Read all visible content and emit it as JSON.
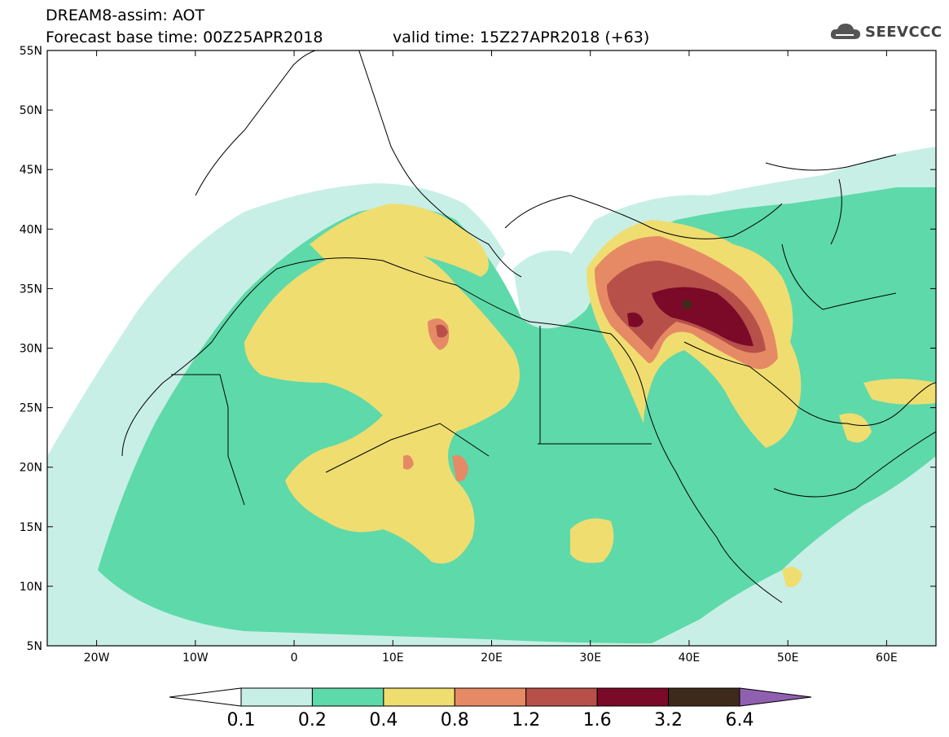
{
  "header": {
    "title_line1": "DREAM8-assim: AOT",
    "title_line2": "Forecast base time: 00Z25APR2018",
    "valid_time": "valid time: 15Z27APR2018 (+63)",
    "brand": "SEEVCCC"
  },
  "map": {
    "lat_labels": [
      "55N",
      "50N",
      "45N",
      "40N",
      "35N",
      "30N",
      "25N",
      "20N",
      "15N",
      "10N",
      "5N"
    ],
    "lon_labels": [
      "20W",
      "10W",
      "0",
      "10E",
      "20E",
      "30E",
      "40E",
      "50E",
      "60E"
    ],
    "lon_range": [
      -25,
      65
    ],
    "lat_range": [
      5,
      55
    ]
  },
  "colorbar": {
    "labels": [
      "0.1",
      "0.2",
      "0.4",
      "0.8",
      "1.2",
      "1.6",
      "3.2",
      "6.4"
    ],
    "colors": [
      "#c8efe6",
      "#5ed9aa",
      "#f0dd70",
      "#e68a66",
      "#b8504a",
      "#7a0a28",
      "#3d2a1a",
      "#9060b0"
    ]
  },
  "colors": {
    "c01": "#c8efe6",
    "c02": "#5ed9aa",
    "c04": "#f0dd70",
    "c08": "#e68a66",
    "c12": "#b8504a",
    "c16": "#7a0a28",
    "c32": "#3d2a1a"
  }
}
